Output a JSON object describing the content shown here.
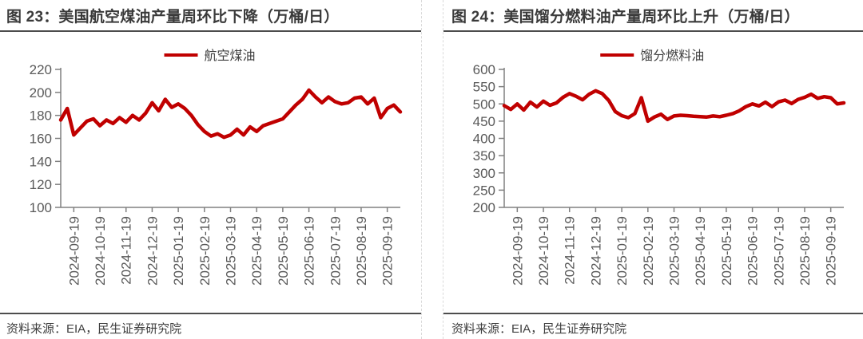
{
  "page": {
    "background": "#ffffff",
    "separator_color": "#d9d9d9",
    "rule_color": "#4d4d4d"
  },
  "panels": [
    {
      "title": "图 23：美国航空煤油产量周环比下降（万桶/日）",
      "source": "资料来源：EIA，民生证券研究院"
    },
    {
      "title": "图 24：美国馏分燃料油产量周环比上升（万桶/日）",
      "source": "资料来源：EIA，民生证券研究院"
    }
  ],
  "chart_data": [
    {
      "type": "line",
      "title": "图 23：美国航空煤油产量周环比下降（万桶/日）",
      "legend_position": "top-center",
      "grid": false,
      "line_color": "#C00000",
      "axis_color": "#808080",
      "tick_label_color": "#595959",
      "ylim": [
        100,
        220
      ],
      "yticks": [
        220,
        200,
        180,
        160,
        140,
        120,
        100
      ],
      "x_tick_labels": [
        "2024-09-19",
        "2024-10-19",
        "2024-11-19",
        "2024-12-19",
        "2025-01-19",
        "2025-02-19",
        "2025-03-19",
        "2025-04-19",
        "2025-05-19",
        "2025-06-19",
        "2025-07-19",
        "2025-08-19",
        "2025-09-19"
      ],
      "series": [
        {
          "name": "航空煤油",
          "values": [
            176,
            186,
            163,
            169,
            175,
            177,
            171,
            176,
            173,
            178,
            174,
            180,
            176,
            182,
            191,
            184,
            194,
            187,
            190,
            186,
            180,
            172,
            166,
            162,
            164,
            161,
            163,
            168,
            163,
            170,
            166,
            171,
            173,
            175,
            177,
            183,
            189,
            194,
            202,
            196,
            191,
            196,
            192,
            190,
            191,
            195,
            196,
            190,
            195,
            178,
            186,
            189,
            183
          ]
        }
      ]
    },
    {
      "type": "line",
      "title": "图 24：美国馏分燃料油产量周环比上升（万桶/日）",
      "legend_position": "top-center",
      "grid": false,
      "line_color": "#C00000",
      "axis_color": "#808080",
      "tick_label_color": "#595959",
      "ylim": [
        200,
        600
      ],
      "yticks": [
        600,
        550,
        500,
        450,
        400,
        350,
        300,
        250,
        200
      ],
      "x_tick_labels": [
        "2024-09-19",
        "2024-10-19",
        "2024-11-19",
        "2024-12-19",
        "2025-01-19",
        "2025-02-19",
        "2025-03-19",
        "2025-04-19",
        "2025-05-19",
        "2025-06-19",
        "2025-07-19",
        "2025-08-19",
        "2025-09-19"
      ],
      "series": [
        {
          "name": "馏分燃料油",
          "values": [
            495,
            484,
            500,
            482,
            505,
            491,
            508,
            496,
            503,
            519,
            530,
            522,
            512,
            528,
            538,
            530,
            510,
            478,
            466,
            460,
            472,
            518,
            450,
            462,
            470,
            455,
            465,
            467,
            466,
            464,
            463,
            462,
            465,
            463,
            467,
            472,
            480,
            492,
            500,
            494,
            505,
            492,
            506,
            511,
            501,
            513,
            519,
            528,
            516,
            521,
            518,
            500,
            503
          ]
        }
      ]
    }
  ]
}
